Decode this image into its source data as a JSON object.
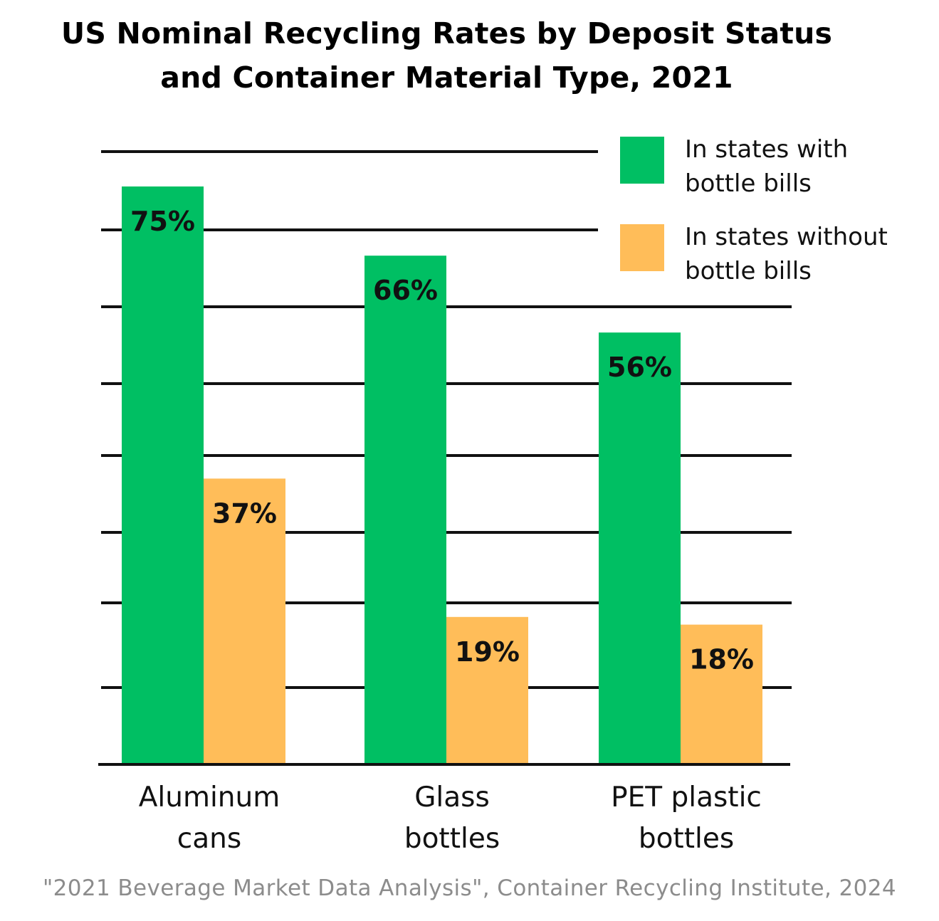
{
  "title": {
    "line1": "US Nominal Recycling Rates by Deposit Status",
    "line2": "and Container Material Type, 2021"
  },
  "source": "\"2021 Beverage Market Data Analysis\", Container Recycling Institute, 2024",
  "chart_data": {
    "type": "bar",
    "title": "US Nominal Recycling Rates by Deposit Status and Container Material Type, 2021",
    "categories": [
      [
        "Aluminum",
        "cans"
      ],
      [
        "Glass",
        "bottles"
      ],
      [
        "PET plastic",
        "bottles"
      ]
    ],
    "series": [
      {
        "name": [
          "In states with",
          "bottle bills"
        ],
        "values": [
          75,
          66,
          56
        ],
        "labels": [
          "75%",
          "66%",
          "56%"
        ],
        "color": "#00bf63"
      },
      {
        "name": [
          "In states without",
          "bottle bills"
        ],
        "values": [
          37,
          19,
          18
        ],
        "labels": [
          "37%",
          "19%",
          "18%"
        ],
        "color": "#ffbd59"
      }
    ],
    "ylim": [
      0,
      80
    ],
    "grid": true,
    "legend_position": "top-right",
    "xlabel": "",
    "ylabel": ""
  }
}
